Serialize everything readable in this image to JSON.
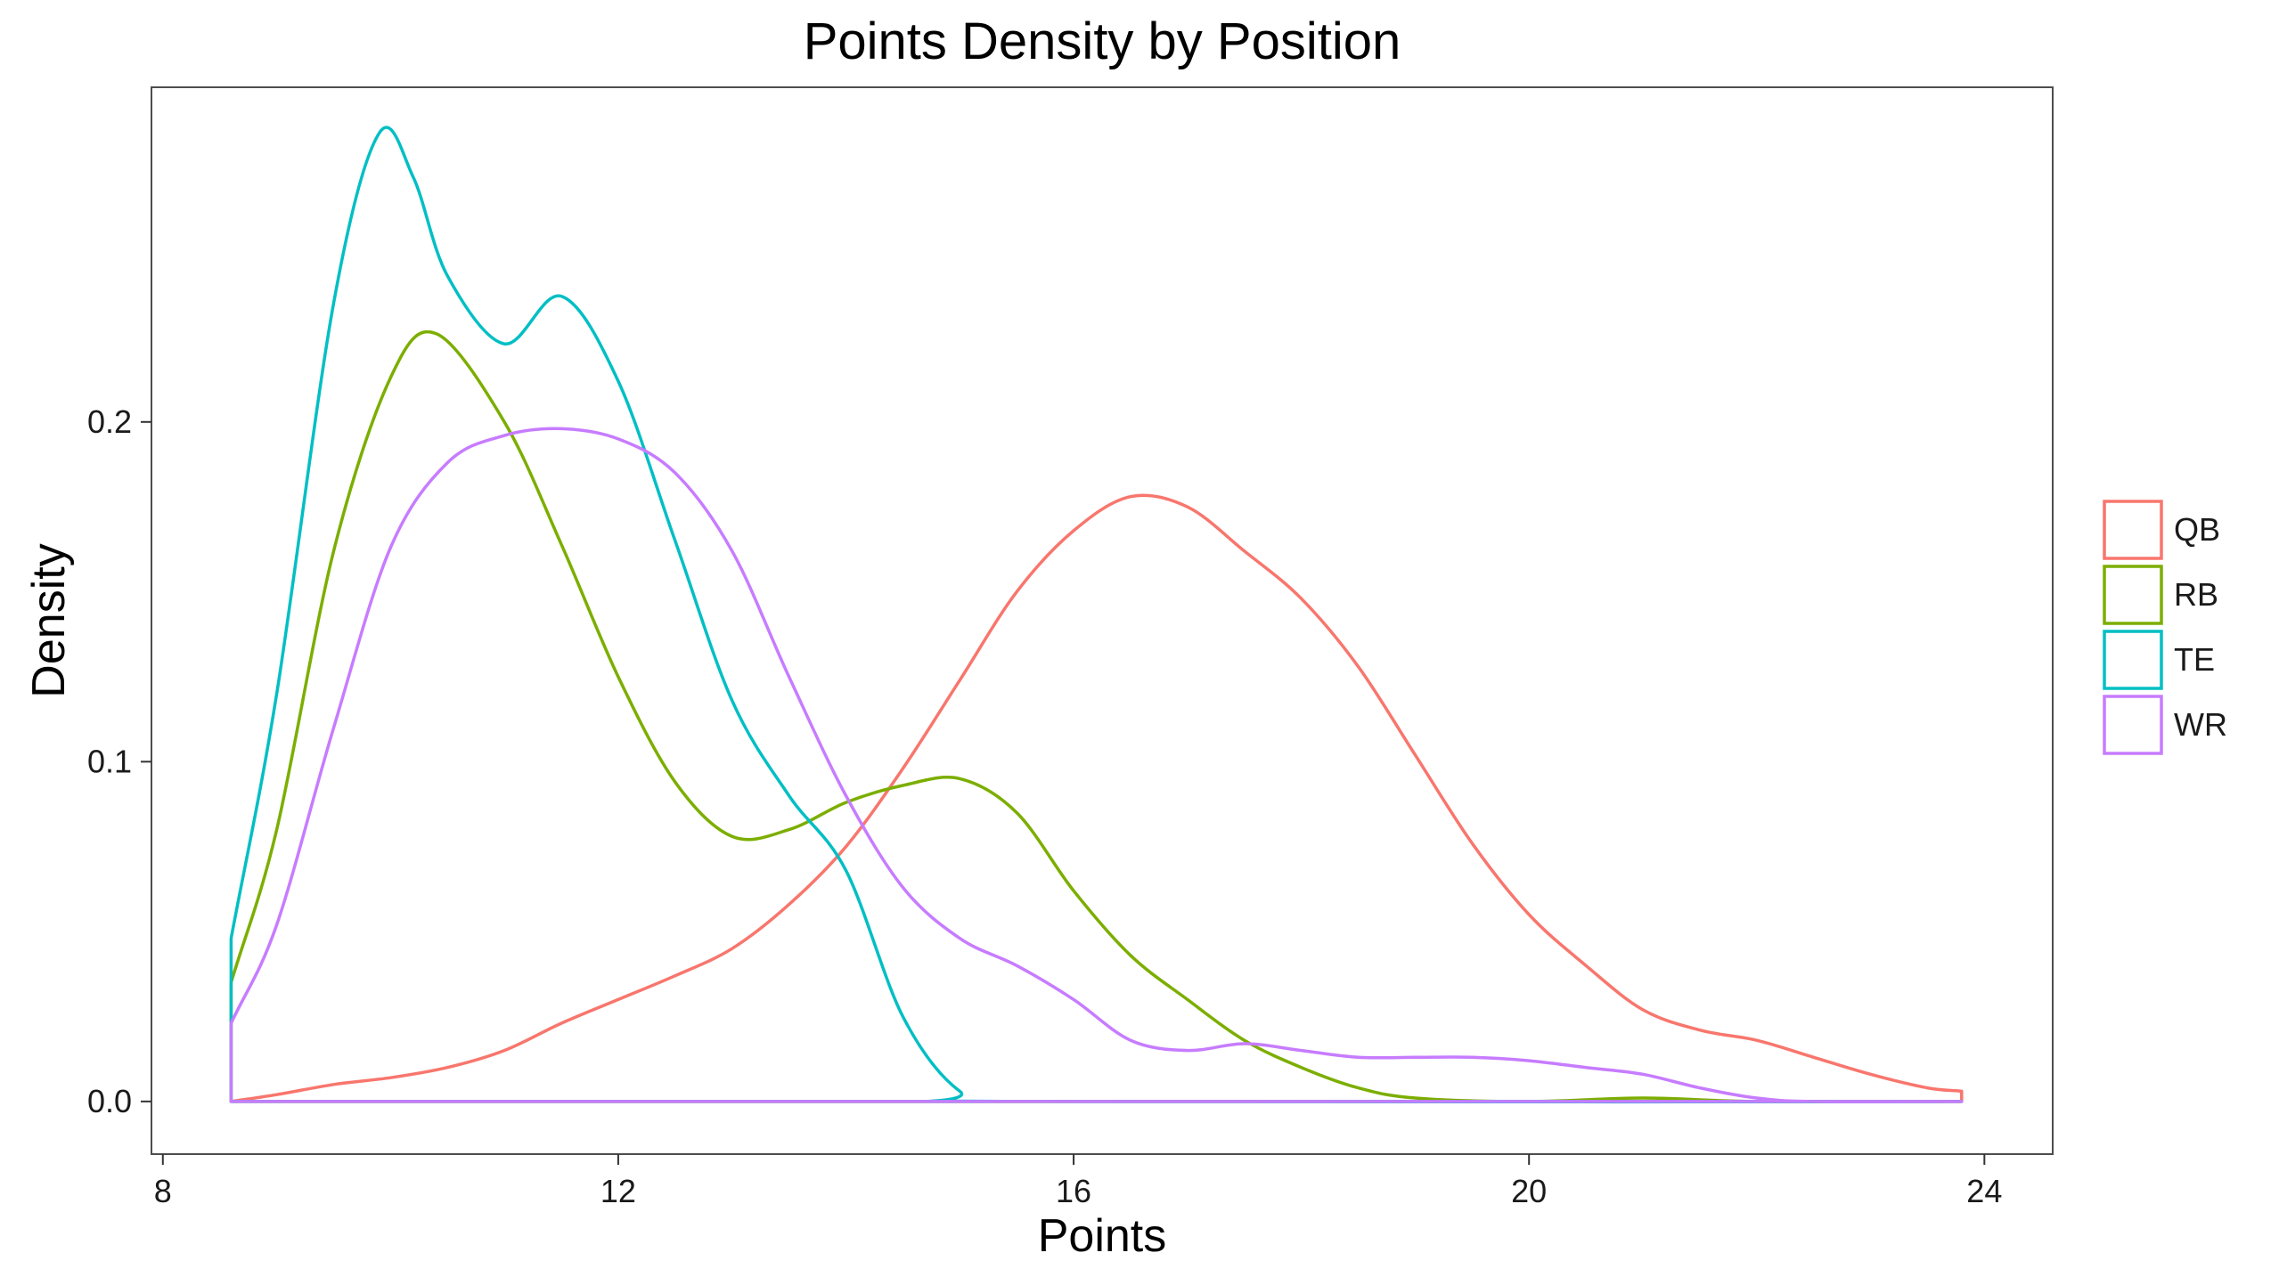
{
  "chart_data": {
    "type": "line",
    "title": "Points Density by Position",
    "xlabel": "Points",
    "ylabel": "Density",
    "xlim": [
      7.9,
      24.6
    ],
    "ylim": [
      -0.0155,
      0.2985
    ],
    "x_ticks": [
      8,
      12,
      16,
      20,
      24
    ],
    "x_tick_labels": [
      "8",
      "12",
      "16",
      "20",
      "24"
    ],
    "y_ticks": [
      0.0,
      0.1,
      0.2
    ],
    "y_tick_labels": [
      "0.0",
      "0.1",
      "0.2"
    ],
    "grid": false,
    "legend_position": "right",
    "series": [
      {
        "name": "QB",
        "color": "#F8766D",
        "points": [
          [
            8.6,
            0.0
          ],
          [
            9.0,
            0.002
          ],
          [
            9.5,
            0.005
          ],
          [
            10.0,
            0.007
          ],
          [
            10.5,
            0.01
          ],
          [
            11.0,
            0.015
          ],
          [
            11.5,
            0.023
          ],
          [
            12.0,
            0.03
          ],
          [
            12.5,
            0.037
          ],
          [
            13.0,
            0.045
          ],
          [
            13.5,
            0.058
          ],
          [
            14.0,
            0.075
          ],
          [
            14.5,
            0.098
          ],
          [
            15.0,
            0.124
          ],
          [
            15.5,
            0.15
          ],
          [
            16.0,
            0.168
          ],
          [
            16.5,
            0.178
          ],
          [
            17.0,
            0.175
          ],
          [
            17.5,
            0.162
          ],
          [
            18.0,
            0.148
          ],
          [
            18.5,
            0.128
          ],
          [
            19.0,
            0.102
          ],
          [
            19.5,
            0.076
          ],
          [
            20.0,
            0.055
          ],
          [
            20.5,
            0.04
          ],
          [
            21.0,
            0.027
          ],
          [
            21.5,
            0.021
          ],
          [
            22.0,
            0.018
          ],
          [
            22.5,
            0.013
          ],
          [
            23.0,
            0.008
          ],
          [
            23.5,
            0.004
          ],
          [
            23.8,
            0.003
          ],
          [
            23.8,
            0.0
          ]
        ]
      },
      {
        "name": "RB",
        "color": "#7CAE00",
        "points": [
          [
            8.6,
            0.0
          ],
          [
            8.6,
            0.035
          ],
          [
            9.0,
            0.08
          ],
          [
            9.5,
            0.162
          ],
          [
            10.0,
            0.213
          ],
          [
            10.4,
            0.226
          ],
          [
            11.0,
            0.2
          ],
          [
            11.5,
            0.164
          ],
          [
            12.0,
            0.125
          ],
          [
            12.5,
            0.094
          ],
          [
            13.0,
            0.078
          ],
          [
            13.5,
            0.08
          ],
          [
            14.0,
            0.088
          ],
          [
            14.5,
            0.093
          ],
          [
            15.0,
            0.095
          ],
          [
            15.5,
            0.085
          ],
          [
            16.0,
            0.062
          ],
          [
            16.5,
            0.043
          ],
          [
            17.0,
            0.03
          ],
          [
            17.5,
            0.018
          ],
          [
            18.0,
            0.01
          ],
          [
            18.5,
            0.004
          ],
          [
            19.0,
            0.001
          ],
          [
            20.0,
            0.0
          ],
          [
            21.0,
            0.001
          ],
          [
            22.0,
            0.0
          ],
          [
            23.8,
            0.0
          ]
        ]
      },
      {
        "name": "TE",
        "color": "#00BFC4",
        "points": [
          [
            8.6,
            0.0
          ],
          [
            8.6,
            0.048
          ],
          [
            9.0,
            0.12
          ],
          [
            9.5,
            0.235
          ],
          [
            9.9,
            0.285
          ],
          [
            10.2,
            0.272
          ],
          [
            10.5,
            0.243
          ],
          [
            11.0,
            0.223
          ],
          [
            11.5,
            0.237
          ],
          [
            12.0,
            0.212
          ],
          [
            12.5,
            0.165
          ],
          [
            13.0,
            0.118
          ],
          [
            13.5,
            0.09
          ],
          [
            14.0,
            0.068
          ],
          [
            14.5,
            0.025
          ],
          [
            15.0,
            0.003
          ],
          [
            15.5,
            0.0
          ],
          [
            23.8,
            0.0
          ]
        ]
      },
      {
        "name": "WR",
        "color": "#C77CFF",
        "points": [
          [
            8.6,
            0.0
          ],
          [
            8.6,
            0.023
          ],
          [
            9.0,
            0.052
          ],
          [
            9.5,
            0.11
          ],
          [
            10.0,
            0.163
          ],
          [
            10.5,
            0.188
          ],
          [
            11.0,
            0.196
          ],
          [
            11.5,
            0.198
          ],
          [
            12.0,
            0.195
          ],
          [
            12.5,
            0.185
          ],
          [
            13.0,
            0.162
          ],
          [
            13.5,
            0.125
          ],
          [
            14.0,
            0.09
          ],
          [
            14.5,
            0.063
          ],
          [
            15.0,
            0.048
          ],
          [
            15.5,
            0.04
          ],
          [
            16.0,
            0.03
          ],
          [
            16.5,
            0.018
          ],
          [
            17.0,
            0.015
          ],
          [
            17.5,
            0.017
          ],
          [
            18.0,
            0.015
          ],
          [
            18.5,
            0.013
          ],
          [
            19.0,
            0.013
          ],
          [
            19.5,
            0.013
          ],
          [
            20.0,
            0.012
          ],
          [
            20.5,
            0.01
          ],
          [
            21.0,
            0.008
          ],
          [
            21.5,
            0.004
          ],
          [
            22.0,
            0.001
          ],
          [
            22.5,
            0.0
          ],
          [
            23.8,
            0.0
          ]
        ]
      }
    ]
  }
}
